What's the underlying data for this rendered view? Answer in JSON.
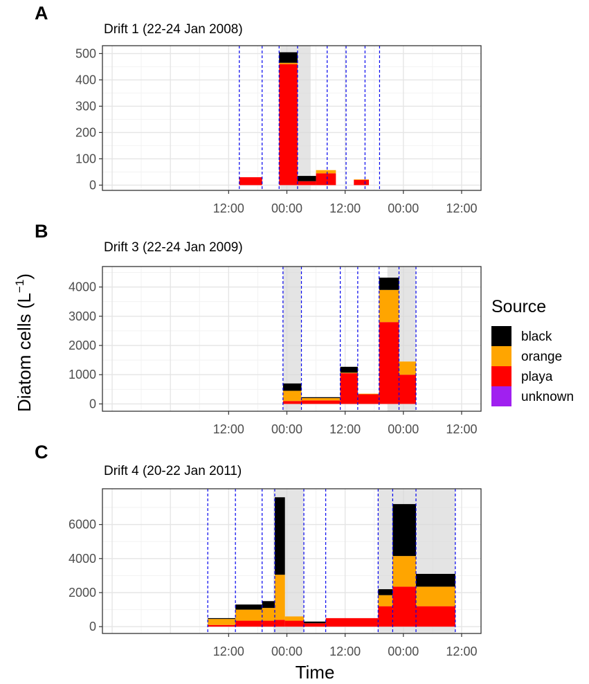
{
  "figure": {
    "ylabel_main": "Diatom cells (L",
    "ylabel_sup": "−1",
    "ylabel_close": ")",
    "xlabel": "Time"
  },
  "legend": {
    "title": "Source",
    "items": [
      {
        "label": "black",
        "color": "#000000"
      },
      {
        "label": "orange",
        "color": "#FFA500"
      },
      {
        "label": "playa",
        "color": "#FF0000"
      },
      {
        "label": "unknown",
        "color": "#A020F0"
      }
    ]
  },
  "chart_data": [
    {
      "type": "bar",
      "panel_letter": "A",
      "title": "Drift 1 (22-24 Jan 2008)",
      "xlabel": "Time",
      "ylabel": "Diatom cells (L−1)",
      "x_units": "hours since 00:00 on first day of window",
      "xlim": [
        -14,
        64
      ],
      "x_ticks": [
        {
          "x": 12,
          "label": "12:00"
        },
        {
          "x": 24,
          "label": "00:00"
        },
        {
          "x": 36,
          "label": "12:00"
        },
        {
          "x": 48,
          "label": "00:00"
        },
        {
          "x": 60,
          "label": "12:00"
        }
      ],
      "ylim": [
        -20,
        530
      ],
      "y_ticks": [
        0,
        100,
        200,
        300,
        400,
        500
      ],
      "stack_order": [
        "playa",
        "orange",
        "black"
      ],
      "night_shading": [
        {
          "x0": 22.6,
          "x1": 28.9
        }
      ],
      "sample_lines": [
        14.2,
        18.9,
        22.4,
        26.2,
        32.3,
        36.2,
        40.1,
        43.1
      ],
      "bars": [
        {
          "x0": 14.2,
          "x1": 18.9,
          "playa": 30,
          "orange": 0,
          "black": 0
        },
        {
          "x0": 22.4,
          "x1": 26.2,
          "playa": 460,
          "orange": 5,
          "black": 40
        },
        {
          "x0": 26.2,
          "x1": 30.0,
          "playa": 15,
          "orange": 0,
          "black": 20
        },
        {
          "x0": 30.0,
          "x1": 34.1,
          "playa": 45,
          "orange": 12,
          "black": 0
        },
        {
          "x0": 37.8,
          "x1": 40.9,
          "playa": 20,
          "orange": 2,
          "black": 0
        }
      ],
      "grid": true
    },
    {
      "type": "bar",
      "panel_letter": "B",
      "title": "Drift 3 (22-24 Jan 2009)",
      "xlabel": "Time",
      "ylabel": "Diatom cells (L−1)",
      "x_units": "hours since 00:00 on first day of window",
      "xlim": [
        -14,
        64
      ],
      "x_ticks": [
        {
          "x": 12,
          "label": "12:00"
        },
        {
          "x": 24,
          "label": "00:00"
        },
        {
          "x": 36,
          "label": "12:00"
        },
        {
          "x": 48,
          "label": "00:00"
        },
        {
          "x": 60,
          "label": "12:00"
        }
      ],
      "ylim": [
        -250,
        4700
      ],
      "y_ticks": [
        0,
        1000,
        2000,
        3000,
        4000
      ],
      "stack_order": [
        "playa",
        "orange",
        "black"
      ],
      "night_shading": [
        {
          "x0": 23.2,
          "x1": 27.0
        },
        {
          "x0": 44.7,
          "x1": 47.1
        },
        {
          "x0": 47.1,
          "x1": 50.6
        }
      ],
      "sample_lines": [
        23.2,
        27.0,
        35.0,
        38.6,
        43.0,
        47.1,
        50.6
      ],
      "bars": [
        {
          "x0": 23.2,
          "x1": 27.0,
          "playa": 100,
          "orange": 350,
          "black": 250
        },
        {
          "x0": 27.0,
          "x1": 35.0,
          "playa": 120,
          "orange": 80,
          "black": 30
        },
        {
          "x0": 35.0,
          "x1": 38.6,
          "playa": 1050,
          "orange": 20,
          "black": 200
        },
        {
          "x0": 38.6,
          "x1": 43.0,
          "playa": 330,
          "orange": 20,
          "black": 0
        },
        {
          "x0": 43.0,
          "x1": 47.1,
          "playa": 2800,
          "orange": 1100,
          "black": 420
        },
        {
          "x0": 47.1,
          "x1": 50.6,
          "playa": 1000,
          "orange": 450,
          "black": 0
        }
      ],
      "grid": true
    },
    {
      "type": "bar",
      "panel_letter": "C",
      "title": "Drift 4 (20-22 Jan 2011)",
      "xlabel": "Time",
      "ylabel": "Diatom cells (L−1)",
      "x_units": "hours since 00:00 on first day of window",
      "xlim": [
        -14,
        64
      ],
      "x_ticks": [
        {
          "x": 12,
          "label": "12:00"
        },
        {
          "x": 24,
          "label": "00:00"
        },
        {
          "x": 36,
          "label": "12:00"
        },
        {
          "x": 48,
          "label": "00:00"
        },
        {
          "x": 60,
          "label": "12:00"
        }
      ],
      "ylim": [
        -400,
        8100
      ],
      "y_ticks": [
        0,
        2000,
        4000,
        6000
      ],
      "stack_order": [
        "playa",
        "orange",
        "black"
      ],
      "night_shading": [
        {
          "x0": 21.2,
          "x1": 27.5
        },
        {
          "x0": 42.8,
          "x1": 45.8
        },
        {
          "x0": 45.8,
          "x1": 58.7
        }
      ],
      "sample_lines": [
        7.7,
        13.4,
        18.9,
        21.5,
        27.5,
        32.0,
        42.8,
        45.8,
        50.6,
        58.7
      ],
      "bars": [
        {
          "x0": 7.7,
          "x1": 13.4,
          "playa": 100,
          "orange": 350,
          "black": 50
        },
        {
          "x0": 13.4,
          "x1": 18.9,
          "playa": 350,
          "orange": 650,
          "black": 300
        },
        {
          "x0": 18.9,
          "x1": 21.5,
          "playa": 350,
          "orange": 750,
          "black": 400
        },
        {
          "x0": 21.5,
          "x1": 23.6,
          "playa": 400,
          "orange": 2650,
          "black": 4550
        },
        {
          "x0": 23.6,
          "x1": 27.5,
          "playa": 350,
          "orange": 250,
          "black": 0
        },
        {
          "x0": 27.5,
          "x1": 32.0,
          "playa": 200,
          "orange": 0,
          "black": 100
        },
        {
          "x0": 32.0,
          "x1": 42.8,
          "playa": 500,
          "orange": 0,
          "black": 0
        },
        {
          "x0": 42.8,
          "x1": 45.8,
          "playa": 1200,
          "orange": 650,
          "black": 350
        },
        {
          "x0": 45.8,
          "x1": 50.6,
          "playa": 2350,
          "orange": 1800,
          "black": 3050
        },
        {
          "x0": 50.6,
          "x1": 58.7,
          "playa": 1200,
          "orange": 1150,
          "black": 750
        }
      ],
      "grid": true
    }
  ]
}
